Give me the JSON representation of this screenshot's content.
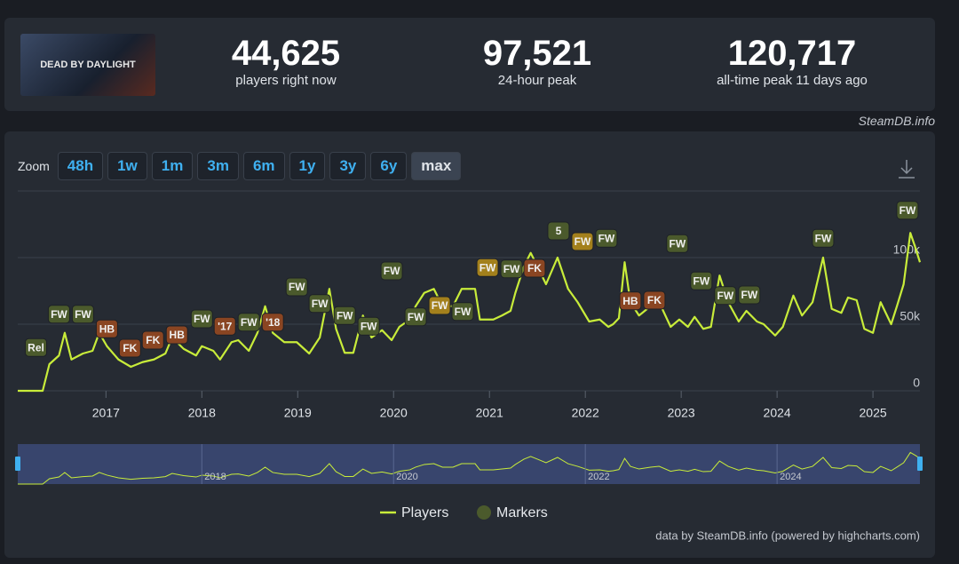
{
  "thumbnail": "DEAD BY DAYLIGHT",
  "stats": [
    {
      "value": "44,625",
      "label": "players right now"
    },
    {
      "value": "97,521",
      "label": "24-hour peak"
    },
    {
      "value": "120,717",
      "label": "all-time peak 11 days ago"
    }
  ],
  "watermark": "SteamDB.info",
  "zoom": {
    "label": "Zoom",
    "buttons": [
      "48h",
      "1w",
      "1m",
      "3m",
      "6m",
      "1y",
      "3y",
      "6y",
      "max"
    ],
    "active": 8
  },
  "credit": "data by SteamDB.info (powered by highcharts.com)",
  "chart_data": {
    "type": "line",
    "x": [
      2016.08,
      2016.34,
      2016.41,
      2016.51,
      2016.57,
      2016.64,
      2016.76,
      2016.86,
      2016.93,
      2017.01,
      2017.13,
      2017.26,
      2017.38,
      2017.5,
      2017.62,
      2017.69,
      2017.81,
      2017.94,
      2018.0,
      2018.12,
      2018.19,
      2018.31,
      2018.38,
      2018.49,
      2018.58,
      2018.66,
      2018.74,
      2018.86,
      2018.99,
      2019.12,
      2019.23,
      2019.33,
      2019.4,
      2019.49,
      2019.58,
      2019.68,
      2019.77,
      2019.88,
      2019.98,
      2020.06,
      2020.17,
      2020.23,
      2020.32,
      2020.42,
      2020.51,
      2020.62,
      2020.71,
      2020.85,
      2020.9,
      2021.04,
      2021.13,
      2021.22,
      2021.27,
      2021.36,
      2021.43,
      2021.5,
      2021.59,
      2021.71,
      2021.82,
      2021.92,
      2022.04,
      2022.15,
      2022.24,
      2022.29,
      2022.35,
      2022.41,
      2022.47,
      2022.56,
      2022.68,
      2022.77,
      2022.89,
      2022.98,
      2023.07,
      2023.14,
      2023.23,
      2023.31,
      2023.4,
      2023.49,
      2023.6,
      2023.68,
      2023.79,
      2023.86,
      2023.98,
      2024.06,
      2024.17,
      2024.26,
      2024.37,
      2024.48,
      2024.57,
      2024.67,
      2024.74,
      2024.83,
      2024.91,
      2025.0,
      2025.08,
      2025.19,
      2025.25,
      2025.32,
      2025.39,
      2025.44,
      2025.49
    ],
    "series": [
      {
        "name": "Players",
        "color": "#c8ec3a",
        "values": [
          0,
          0,
          20000,
          26500,
          43500,
          23500,
          28000,
          30000,
          43500,
          33500,
          23500,
          18000,
          21500,
          23500,
          28000,
          40000,
          31500,
          26500,
          33500,
          30000,
          23500,
          36500,
          38000,
          30000,
          43500,
          63500,
          43500,
          36500,
          36500,
          28000,
          40000,
          76500,
          46500,
          28500,
          28500,
          56500,
          40000,
          45500,
          38000,
          48000,
          53500,
          63500,
          73500,
          76500,
          63500,
          63500,
          76500,
          76500,
          53500,
          53500,
          56500,
          60000,
          73500,
          93500,
          103500,
          93500,
          80000,
          100000,
          76500,
          66500,
          52000,
          53500,
          48000,
          50000,
          54500,
          96500,
          66500,
          56500,
          63500,
          66500,
          48000,
          53500,
          48000,
          55500,
          46500,
          48000,
          86500,
          66500,
          52000,
          60000,
          52000,
          50000,
          41500,
          48000,
          71500,
          56500,
          66500,
          100000,
          61500,
          58500,
          70000,
          68000,
          46500,
          43500,
          66500,
          50000,
          63500,
          80000,
          118500,
          108000,
          96500
        ]
      }
    ],
    "markers": {
      "name": "Markers",
      "color": "#4b5a2c",
      "items": [
        {
          "label": "Rel",
          "x": 2016.27,
          "y": 32500,
          "color": "#4b5a2c"
        },
        {
          "label": "FW",
          "x": 2016.51,
          "y": 57500,
          "color": "#4b5a2c"
        },
        {
          "label": "FW",
          "x": 2016.76,
          "y": 57500,
          "color": "#4b5a2c"
        },
        {
          "label": "HB",
          "x": 2017.01,
          "y": 46500,
          "color": "#8a4522"
        },
        {
          "label": "FK",
          "x": 2017.25,
          "y": 32000,
          "color": "#8a4522"
        },
        {
          "label": "FK",
          "x": 2017.49,
          "y": 38000,
          "color": "#8a4522"
        },
        {
          "label": "HB",
          "x": 2017.74,
          "y": 42000,
          "color": "#8a4522"
        },
        {
          "label": "FW",
          "x": 2018.0,
          "y": 54000,
          "color": "#4b5a2c"
        },
        {
          "label": "'17",
          "x": 2018.24,
          "y": 48500,
          "color": "#8a4522"
        },
        {
          "label": "FW",
          "x": 2018.49,
          "y": 51500,
          "color": "#4b5a2c"
        },
        {
          "label": "'18",
          "x": 2018.74,
          "y": 51500,
          "color": "#8a4522"
        },
        {
          "label": "FW",
          "x": 2018.99,
          "y": 78000,
          "color": "#4b5a2c"
        },
        {
          "label": "FW",
          "x": 2019.23,
          "y": 65500,
          "color": "#4b5a2c"
        },
        {
          "label": "FW",
          "x": 2019.49,
          "y": 56500,
          "color": "#4b5a2c"
        },
        {
          "label": "FW",
          "x": 2019.74,
          "y": 48500,
          "color": "#4b5a2c"
        },
        {
          "label": "FW",
          "x": 2019.98,
          "y": 90000,
          "color": "#4b5a2c"
        },
        {
          "label": "FW",
          "x": 2020.23,
          "y": 55500,
          "color": "#4b5a2c"
        },
        {
          "label": "FW",
          "x": 2020.48,
          "y": 64000,
          "color": "#a3801c"
        },
        {
          "label": "FW",
          "x": 2020.72,
          "y": 59500,
          "color": "#4b5a2c"
        },
        {
          "label": "FW",
          "x": 2020.98,
          "y": 92500,
          "color": "#a3801c"
        },
        {
          "label": "FW",
          "x": 2021.23,
          "y": 91500,
          "color": "#4b5a2c"
        },
        {
          "label": "FK",
          "x": 2021.47,
          "y": 92000,
          "color": "#8a4522"
        },
        {
          "label": "5",
          "x": 2021.72,
          "y": 120000,
          "color": "#4b5a2c"
        },
        {
          "label": "FW",
          "x": 2021.97,
          "y": 112000,
          "color": "#a3801c"
        },
        {
          "label": "FW",
          "x": 2022.22,
          "y": 114500,
          "color": "#4b5a2c"
        },
        {
          "label": "HB",
          "x": 2022.47,
          "y": 67500,
          "color": "#8a4522"
        },
        {
          "label": "FK",
          "x": 2022.72,
          "y": 68000,
          "color": "#8a4522"
        },
        {
          "label": "FW",
          "x": 2022.96,
          "y": 110500,
          "color": "#4b5a2c"
        },
        {
          "label": "FW",
          "x": 2023.21,
          "y": 82500,
          "color": "#4b5a2c"
        },
        {
          "label": "FW",
          "x": 2023.46,
          "y": 71500,
          "color": "#4b5a2c"
        },
        {
          "label": "FW",
          "x": 2023.71,
          "y": 72000,
          "color": "#4b5a2c"
        },
        {
          "label": "FW",
          "x": 2024.48,
          "y": 114500,
          "color": "#4b5a2c"
        },
        {
          "label": "FW",
          "x": 2025.36,
          "y": 135500,
          "color": "#4b5a2c"
        }
      ]
    },
    "xlim": [
      2016.08,
      2025.49
    ],
    "ylim": [
      0,
      150000
    ],
    "xticks": [
      2017,
      2018,
      2019,
      2020,
      2021,
      2022,
      2023,
      2024,
      2025
    ],
    "yticks": [
      0,
      {
        "value": 50000,
        "label": "50k"
      },
      {
        "value": 100000,
        "label": "100k"
      }
    ],
    "navigator_xticks": [
      2018,
      2020,
      2022,
      2024
    ],
    "grid": true
  }
}
